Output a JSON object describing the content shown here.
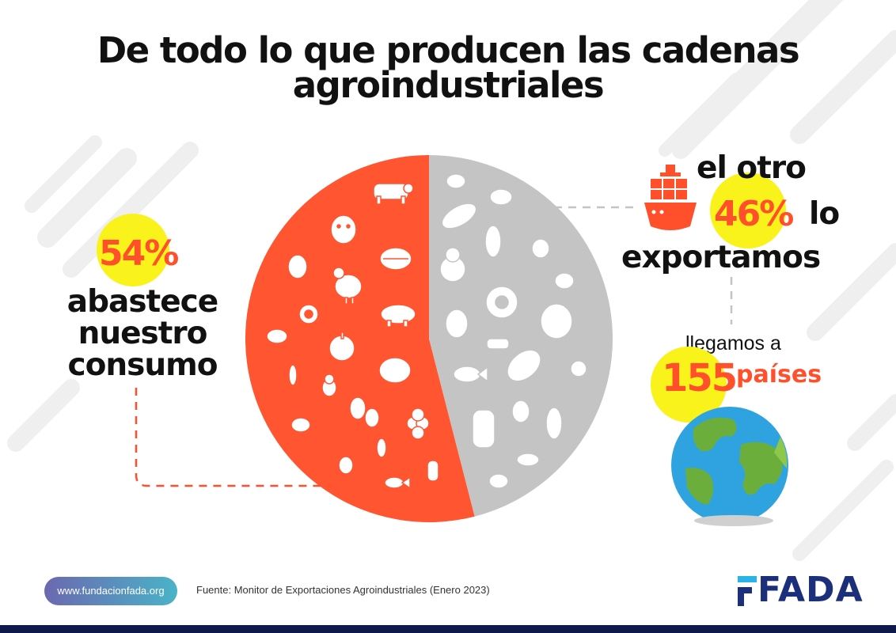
{
  "title": {
    "line1": "De todo lo que producen las cadenas",
    "line2": "agroindustriales"
  },
  "chart_data": {
    "type": "pie",
    "slices": [
      {
        "label": "abastece nuestro consumo",
        "value": 54,
        "color": "#ff5530"
      },
      {
        "label": "lo exportamos",
        "value": 46,
        "color": "#c4c4c4"
      }
    ]
  },
  "left_callout": {
    "percent": "54%",
    "line1": "abastece",
    "line2": "nuestro",
    "line3": "consumo"
  },
  "right_callout": {
    "line1": "el otro",
    "percent": "46%",
    "lo": "lo",
    "line3": "exportamos"
  },
  "countries": {
    "llegamos": "llegamos a",
    "number": "155",
    "paises": "países"
  },
  "footer": {
    "url": "www.fundacionfada.org",
    "source": "Fuente: Monitor de Exportaciones Agroindustriales (Enero 2023)",
    "logo": "FADA"
  },
  "icons": {
    "ship": "ship-icon",
    "globe": "globe-icon",
    "food": "food-icons"
  },
  "colors": {
    "accent": "#ff4f2b",
    "highlight": "#f9f21b",
    "grey": "#c4c4c4",
    "brand": "#1c2f7a"
  }
}
